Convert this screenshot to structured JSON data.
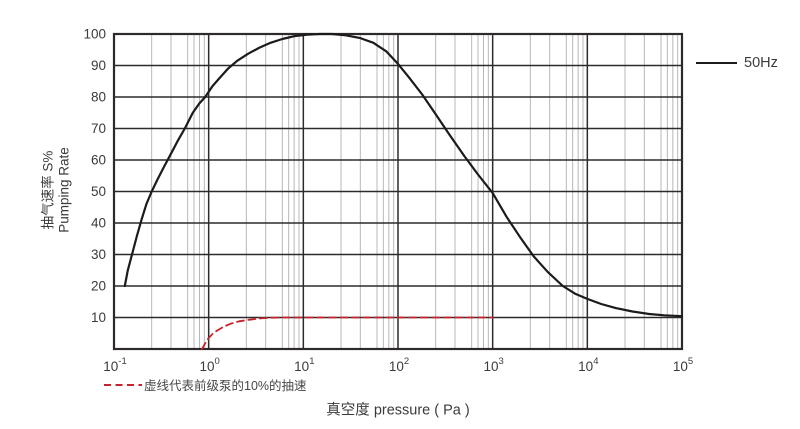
{
  "chart_data": {
    "type": "line",
    "title": "",
    "x_axis": {
      "label": "真空度 pressure ( Pa )",
      "scale": "log",
      "lim_exp": [
        -1,
        5
      ],
      "ticks": [
        {
          "base": "10",
          "exp": "-1"
        },
        {
          "base": "10",
          "exp": "0"
        },
        {
          "base": "10",
          "exp": "1"
        },
        {
          "base": "10",
          "exp": "2"
        },
        {
          "base": "10",
          "exp": "3"
        },
        {
          "base": "10",
          "exp": "4"
        },
        {
          "base": "10",
          "exp": "5"
        }
      ]
    },
    "y_axis": {
      "label_cn": "抽气速率 S%",
      "label_en": "Pumping Rate",
      "lim": [
        0,
        100
      ],
      "ticks": [
        100,
        90,
        80,
        70,
        60,
        50,
        40,
        30,
        20,
        10
      ]
    },
    "grid": {
      "on": true,
      "minor_multipliers": [
        2.5,
        4,
        6,
        7,
        8,
        9
      ]
    },
    "legend": {
      "label": "50Hz",
      "position": "top-right"
    },
    "note": {
      "label": "虚线代表前级泵的10%的抽速"
    },
    "series": [
      {
        "name": "50Hz",
        "style": "solid",
        "color": "#1d1a1b",
        "points": [
          [
            0.13,
            20
          ],
          [
            0.14,
            25
          ],
          [
            0.155,
            30
          ],
          [
            0.175,
            36
          ],
          [
            0.195,
            41
          ],
          [
            0.22,
            46
          ],
          [
            0.25,
            50
          ],
          [
            0.29,
            54
          ],
          [
            0.34,
            58
          ],
          [
            0.4,
            62
          ],
          [
            0.47,
            66
          ],
          [
            0.56,
            70
          ],
          [
            0.68,
            75
          ],
          [
            0.8,
            78
          ],
          [
            0.92,
            80
          ],
          [
            1.1,
            83.5
          ],
          [
            1.3,
            86
          ],
          [
            1.6,
            89
          ],
          [
            2.0,
            91.5
          ],
          [
            2.6,
            93.7
          ],
          [
            3.4,
            95.6
          ],
          [
            4.5,
            97.2
          ],
          [
            6,
            98.4
          ],
          [
            8,
            99.3
          ],
          [
            11,
            99.8
          ],
          [
            15,
            100
          ],
          [
            20,
            100
          ],
          [
            28,
            99.6
          ],
          [
            40,
            98.7
          ],
          [
            55,
            97.2
          ],
          [
            75,
            94.5
          ],
          [
            100,
            90.5
          ],
          [
            130,
            86.3
          ],
          [
            180,
            80.8
          ],
          [
            250,
            74.5
          ],
          [
            350,
            68
          ],
          [
            500,
            61.3
          ],
          [
            700,
            55.4
          ],
          [
            1000,
            49.5
          ],
          [
            1400,
            42
          ],
          [
            2000,
            35
          ],
          [
            2700,
            29.5
          ],
          [
            3800,
            24.5
          ],
          [
            5500,
            20
          ],
          [
            7500,
            17.5
          ],
          [
            10000,
            15.9
          ],
          [
            14000,
            14.3
          ],
          [
            20000,
            13
          ],
          [
            30000,
            11.9
          ],
          [
            45000,
            11.1
          ],
          [
            65000,
            10.7
          ],
          [
            100000,
            10.4
          ]
        ]
      },
      {
        "name": "虚线代表前级泵的10%的抽速",
        "style": "dashed",
        "color": "#c8232b",
        "points": [
          [
            0.85,
            0
          ],
          [
            0.92,
            1.8
          ],
          [
            1.0,
            3.5
          ],
          [
            1.1,
            4.8
          ],
          [
            1.25,
            6
          ],
          [
            1.45,
            7.1
          ],
          [
            1.7,
            8
          ],
          [
            2.1,
            8.8
          ],
          [
            2.7,
            9.3
          ],
          [
            3.5,
            9.7
          ],
          [
            4.5,
            9.9
          ],
          [
            6,
            10
          ],
          [
            10,
            10
          ],
          [
            30,
            10
          ],
          [
            100,
            10
          ],
          [
            300,
            10
          ],
          [
            1000,
            10
          ]
        ]
      }
    ]
  },
  "colors": {
    "background": "#ffffff",
    "major_grid": "#2e2a2b",
    "minor_grid": "#b8b8b8",
    "border": "#2e2a2b",
    "curve_50hz": "#1d1a1b",
    "curve_backing": "#c8232b",
    "text": "#3b3b3b"
  }
}
